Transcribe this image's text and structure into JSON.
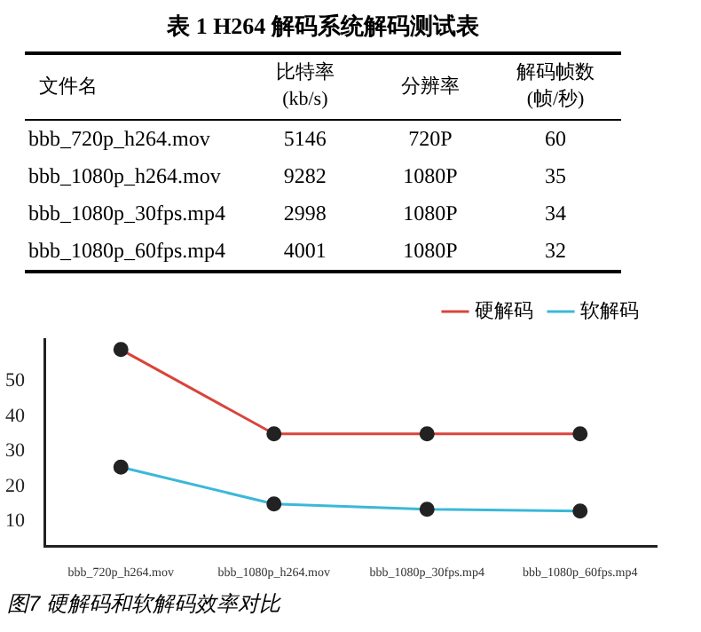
{
  "chart_data": [
    {
      "type": "other",
      "title": "表 1 H264 解码系统解码测试表",
      "annotations": [
        "文件名",
        "比特率(kb/s)",
        "分辨率",
        "解码帧数(帧/秒)",
        "bbb_720p_h264.mov",
        "5146",
        "720P",
        "60",
        "bbb_1080p_h264.mov",
        "9282",
        "1080P",
        "35",
        "bbb_1080p_30fps.mp4",
        "2998",
        "1080P",
        "34",
        "bbb_1080p_60fps.mp4",
        "4001",
        "1080P",
        "32"
      ]
    },
    {
      "type": "line",
      "categories": [
        "bbb_720p_h264.mov",
        "bbb_1080p_h264.mov",
        "bbb_1080p_30fps.mp4",
        "bbb_1080p_60fps.mp4"
      ],
      "series": [
        {
          "name": "硬解码",
          "color": "#d9443c",
          "values": [
            59,
            35,
            35,
            35
          ]
        },
        {
          "name": "软解码",
          "color": "#3bb8d8",
          "values": [
            25.5,
            15,
            13.5,
            13
          ]
        }
      ],
      "ylim": [
        3,
        62
      ],
      "yticks": [
        10,
        20,
        30,
        40,
        50
      ],
      "grid": false,
      "legend": "top right",
      "marker": "circle",
      "line_style": "solid",
      "annotations": [
        "图7 硬解码和软解码效率对比"
      ]
    }
  ]
}
